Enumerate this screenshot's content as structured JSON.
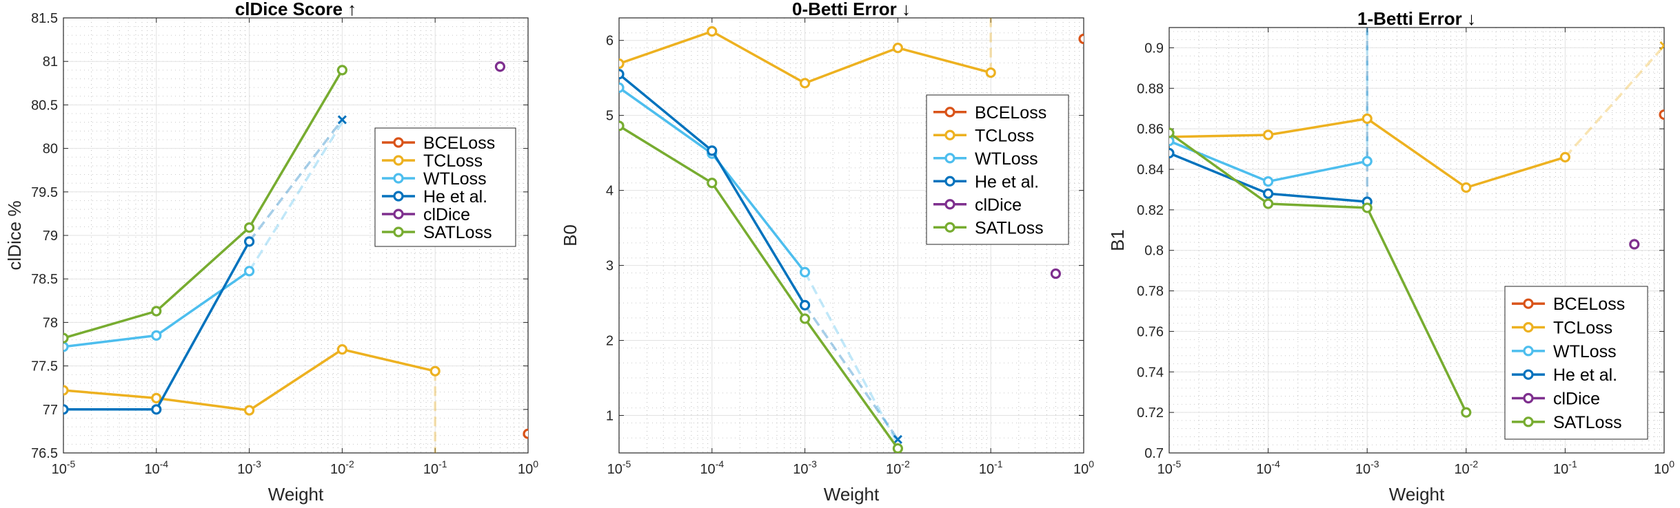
{
  "chart_data": [
    {
      "type": "line",
      "title": "clDice Score ↑",
      "xlabel": "Weight",
      "ylabel": "clDice %",
      "xscale": "log",
      "xlim": [
        1e-05,
        1
      ],
      "ylim": [
        76.5,
        81.5
      ],
      "xticks": [
        1e-05,
        0.0001,
        0.001,
        0.01,
        0.1,
        1
      ],
      "xtick_labels": [
        [
          "10",
          "-5"
        ],
        [
          "10",
          "-4"
        ],
        [
          "10",
          "-3"
        ],
        [
          "10",
          "-2"
        ],
        [
          "10",
          "-1"
        ],
        [
          "10",
          "0"
        ]
      ],
      "yticks": [
        76.5,
        77,
        77.5,
        78,
        78.5,
        79,
        79.5,
        80,
        80.5,
        81,
        81.5
      ],
      "ytick_labels": [
        "76.5",
        "77",
        "77.5",
        "78",
        "78.5",
        "79",
        "79.5",
        "80",
        "80.5",
        "81",
        "81.5"
      ],
      "grid": true,
      "legend_position": "right-middle",
      "series": [
        {
          "name": "BCELoss",
          "color": "#D95319",
          "x": [
            1
          ],
          "y": [
            76.72
          ]
        },
        {
          "name": "TCLoss",
          "color": "#EDB120",
          "x": [
            1e-05,
            0.0001,
            0.001,
            0.01,
            0.1
          ],
          "y": [
            77.22,
            77.13,
            76.99,
            77.69,
            77.44
          ],
          "faded_tail": {
            "x": [
              0.1,
              0.1
            ],
            "y": [
              77.44,
              76.5
            ]
          }
        },
        {
          "name": "WTLoss",
          "color": "#4DBEEE",
          "x": [
            1e-05,
            0.0001,
            0.001
          ],
          "y": [
            77.72,
            77.85,
            78.59
          ],
          "faded_tail": {
            "x": [
              0.001,
              0.01
            ],
            "y": [
              78.59,
              80.3
            ]
          }
        },
        {
          "name": "He et al.",
          "color": "#0072BD",
          "x": [
            1e-05,
            0.0001,
            0.001
          ],
          "y": [
            77.0,
            77.0,
            78.93
          ],
          "faded_tail": {
            "x": [
              0.001,
              0.01
            ],
            "y": [
              78.93,
              80.33
            ]
          },
          "end_marker": {
            "x": 0.01,
            "y": 80.33
          }
        },
        {
          "name": "clDice",
          "color": "#7E2F8E",
          "x": [
            0.5
          ],
          "y": [
            80.94
          ]
        },
        {
          "name": "SATLoss",
          "color": "#77AC30",
          "x": [
            1e-05,
            0.0001,
            0.001,
            0.01
          ],
          "y": [
            77.82,
            78.13,
            79.09,
            80.9
          ]
        }
      ]
    },
    {
      "type": "line",
      "title": "0-Betti Error ↓",
      "xlabel": "Weight",
      "ylabel": "B0",
      "xscale": "log",
      "xlim": [
        1e-05,
        1
      ],
      "ylim": [
        0.5,
        6.3
      ],
      "xticks": [
        1e-05,
        0.0001,
        0.001,
        0.01,
        0.1,
        1
      ],
      "xtick_labels": [
        [
          "10",
          "-5"
        ],
        [
          "10",
          "-4"
        ],
        [
          "10",
          "-3"
        ],
        [
          "10",
          "-2"
        ],
        [
          "10",
          "-1"
        ],
        [
          "10",
          "0"
        ]
      ],
      "yticks": [
        1,
        2,
        3,
        4,
        5,
        6
      ],
      "ytick_labels": [
        "1",
        "2",
        "3",
        "4",
        "5",
        "6"
      ],
      "grid": true,
      "legend_position": "top-right",
      "series": [
        {
          "name": "BCELoss",
          "color": "#D95319",
          "x": [
            1
          ],
          "y": [
            6.02
          ]
        },
        {
          "name": "TCLoss",
          "color": "#EDB120",
          "x": [
            1e-05,
            0.0001,
            0.001,
            0.01,
            0.1
          ],
          "y": [
            5.69,
            6.12,
            5.43,
            5.9,
            5.57
          ],
          "faded_tail": {
            "x": [
              0.1,
              0.1
            ],
            "y": [
              5.57,
              6.3
            ]
          }
        },
        {
          "name": "WTLoss",
          "color": "#4DBEEE",
          "x": [
            1e-05,
            0.0001,
            0.001
          ],
          "y": [
            5.37,
            4.49,
            2.91
          ],
          "faded_tail": {
            "x": [
              0.001,
              0.01
            ],
            "y": [
              2.91,
              0.62
            ]
          }
        },
        {
          "name": "He et al.",
          "color": "#0072BD",
          "x": [
            1e-05,
            0.0001,
            0.001
          ],
          "y": [
            5.55,
            4.53,
            2.47
          ],
          "faded_tail": {
            "x": [
              0.001,
              0.01
            ],
            "y": [
              2.47,
              0.68
            ]
          },
          "end_marker": {
            "x": 0.01,
            "y": 0.68
          }
        },
        {
          "name": "clDice",
          "color": "#7E2F8E",
          "x": [
            0.5
          ],
          "y": [
            2.89
          ]
        },
        {
          "name": "SATLoss",
          "color": "#77AC30",
          "x": [
            1e-05,
            0.0001,
            0.001,
            0.01
          ],
          "y": [
            4.86,
            4.1,
            2.29,
            0.56
          ]
        }
      ]
    },
    {
      "type": "line",
      "title": "1-Betti Error ↓",
      "xlabel": "Weight",
      "ylabel": "B1",
      "xscale": "log",
      "xlim": [
        1e-05,
        1
      ],
      "ylim": [
        0.7,
        0.91
      ],
      "xticks": [
        1e-05,
        0.0001,
        0.001,
        0.01,
        0.1,
        1
      ],
      "xtick_labels": [
        [
          "10",
          "-5"
        ],
        [
          "10",
          "-4"
        ],
        [
          "10",
          "-3"
        ],
        [
          "10",
          "-2"
        ],
        [
          "10",
          "-1"
        ],
        [
          "10",
          "0"
        ]
      ],
      "yticks": [
        0.7,
        0.72,
        0.74,
        0.76,
        0.78,
        0.8,
        0.82,
        0.84,
        0.86,
        0.88,
        0.9
      ],
      "ytick_labels": [
        "0.7",
        "0.72",
        "0.74",
        "0.76",
        "0.78",
        "0.8",
        "0.82",
        "0.84",
        "0.86",
        "0.88",
        "0.9"
      ],
      "grid": true,
      "legend_position": "bottom-right",
      "series": [
        {
          "name": "BCELoss",
          "color": "#D95319",
          "x": [
            1
          ],
          "y": [
            0.867
          ]
        },
        {
          "name": "TCLoss",
          "color": "#EDB120",
          "x": [
            1e-05,
            0.0001,
            0.001,
            0.01,
            0.1
          ],
          "y": [
            0.856,
            0.857,
            0.865,
            0.831,
            0.846
          ],
          "faded_tail": {
            "x": [
              0.1,
              1
            ],
            "y": [
              0.846,
              0.901
            ]
          },
          "end_marker": {
            "x": 1,
            "y": 0.901
          }
        },
        {
          "name": "WTLoss",
          "color": "#4DBEEE",
          "x": [
            1e-05,
            0.0001,
            0.001
          ],
          "y": [
            0.854,
            0.834,
            0.844
          ],
          "faded_tail": {
            "x": [
              0.001,
              0.001
            ],
            "y": [
              0.844,
              0.91
            ]
          }
        },
        {
          "name": "He et al.",
          "color": "#0072BD",
          "x": [
            1e-05,
            0.0001,
            0.001
          ],
          "y": [
            0.848,
            0.828,
            0.824
          ],
          "faded_tail": {
            "x": [
              0.001,
              0.001
            ],
            "y": [
              0.824,
              0.91
            ]
          }
        },
        {
          "name": "clDice",
          "color": "#7E2F8E",
          "x": [
            0.5
          ],
          "y": [
            0.803
          ]
        },
        {
          "name": "SATLoss",
          "color": "#77AC30",
          "x": [
            1e-05,
            0.0001,
            0.001,
            0.01
          ],
          "y": [
            0.858,
            0.823,
            0.821,
            0.72
          ]
        }
      ]
    }
  ]
}
